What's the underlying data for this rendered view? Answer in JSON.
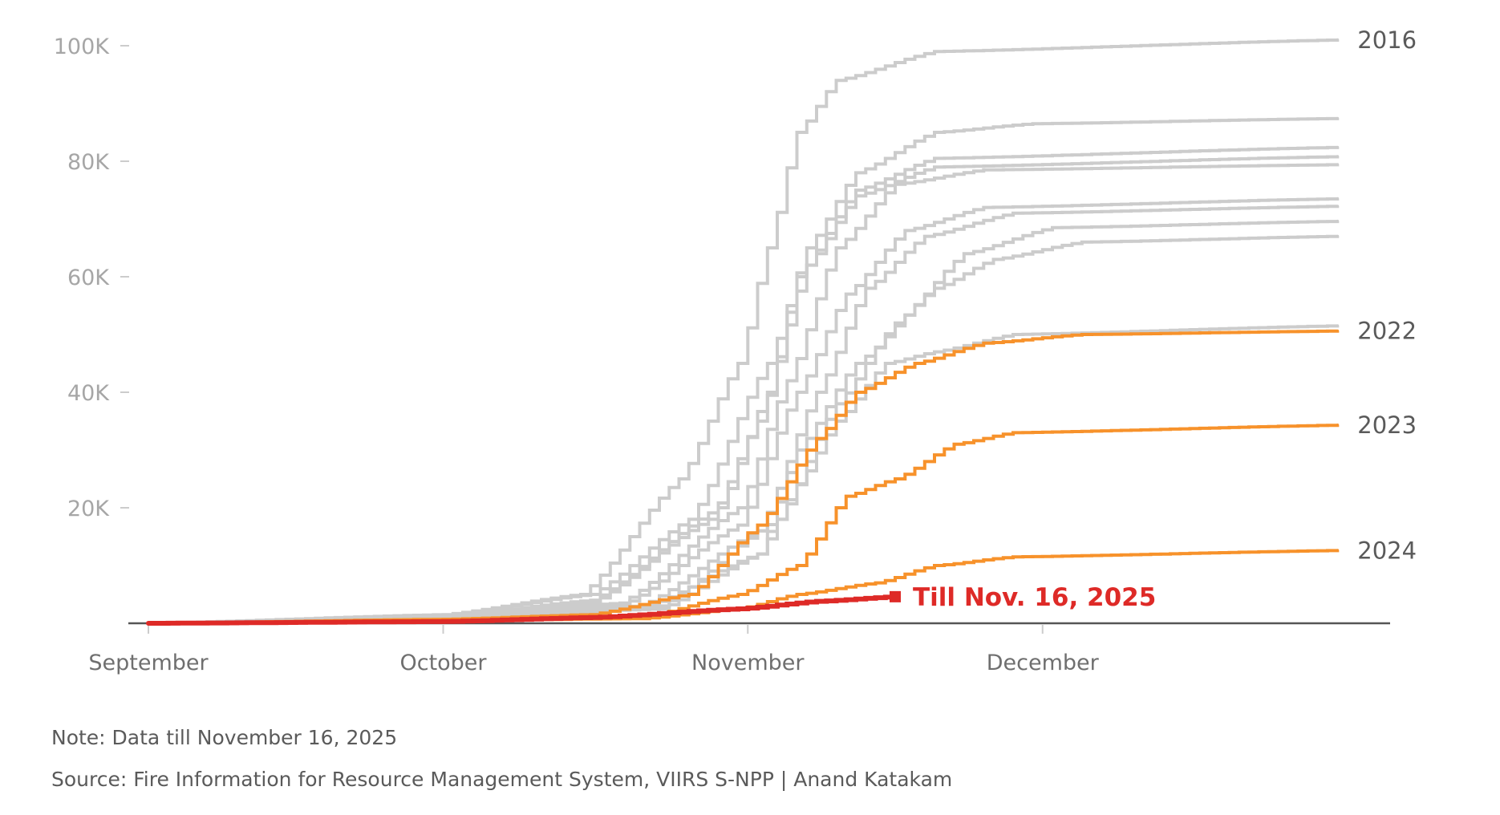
{
  "chart_data": {
    "type": "line",
    "subtype": "step-cumulative",
    "title": "",
    "xlabel": "",
    "ylabel": "",
    "x_unit": "days since September 1",
    "x_range": [
      0,
      121
    ],
    "ylim": [
      0,
      100
    ],
    "y_unit": "thousands of fire counts (cumulative)",
    "y_ticks": [
      {
        "value": 20,
        "label": "20K"
      },
      {
        "value": 40,
        "label": "40K"
      },
      {
        "value": 60,
        "label": "60K"
      },
      {
        "value": 80,
        "label": "80K"
      },
      {
        "value": 100,
        "label": "100K"
      }
    ],
    "x_ticks": [
      {
        "value": 0,
        "label": "September"
      },
      {
        "value": 30,
        "label": "October"
      },
      {
        "value": 61,
        "label": "November"
      },
      {
        "value": 91,
        "label": "December"
      }
    ],
    "grid": false,
    "colors": {
      "past": "#cccccc",
      "recent": "#f7922b",
      "current": "#de2a27",
      "axis": "#555555",
      "tick": "#cccccc"
    },
    "series": [
      {
        "name": "2016",
        "label": "2016",
        "group": "past",
        "points": [
          [
            0,
            0
          ],
          [
            30,
            1.5
          ],
          [
            44,
            5
          ],
          [
            54,
            25
          ],
          [
            60,
            45
          ],
          [
            63,
            65
          ],
          [
            66,
            85
          ],
          [
            70,
            94
          ],
          [
            80,
            99
          ],
          [
            121,
            101
          ]
        ]
      },
      {
        "name": "past-a",
        "label": "",
        "group": "past",
        "points": [
          [
            0,
            0
          ],
          [
            30,
            1.3
          ],
          [
            45,
            5
          ],
          [
            55,
            18
          ],
          [
            63,
            45
          ],
          [
            67,
            65
          ],
          [
            72,
            78
          ],
          [
            80,
            85
          ],
          [
            90,
            86.5
          ],
          [
            121,
            87.4
          ]
        ]
      },
      {
        "name": "past-b",
        "label": "",
        "group": "past",
        "points": [
          [
            0,
            0
          ],
          [
            30,
            1.2
          ],
          [
            45,
            4
          ],
          [
            58,
            20
          ],
          [
            63,
            40
          ],
          [
            66,
            60
          ],
          [
            72,
            75
          ],
          [
            80,
            80.5
          ],
          [
            121,
            82.4
          ]
        ]
      },
      {
        "name": "past-c",
        "label": "",
        "group": "past",
        "points": [
          [
            0,
            0
          ],
          [
            30,
            1.1
          ],
          [
            45,
            3.5
          ],
          [
            57,
            18
          ],
          [
            62,
            35
          ],
          [
            67,
            62
          ],
          [
            72,
            74
          ],
          [
            80,
            79
          ],
          [
            121,
            80.8
          ]
        ]
      },
      {
        "name": "past-d",
        "label": "",
        "group": "past",
        "points": [
          [
            0,
            0
          ],
          [
            30,
            1
          ],
          [
            48,
            3.5
          ],
          [
            60,
            20
          ],
          [
            65,
            42
          ],
          [
            70,
            65
          ],
          [
            76,
            76
          ],
          [
            85,
            78.5
          ],
          [
            121,
            79.4
          ]
        ]
      },
      {
        "name": "past-e",
        "label": "",
        "group": "past",
        "points": [
          [
            0,
            0
          ],
          [
            30,
            0.9
          ],
          [
            48,
            3
          ],
          [
            60,
            17
          ],
          [
            66,
            40
          ],
          [
            71,
            57
          ],
          [
            77,
            68
          ],
          [
            85,
            72
          ],
          [
            121,
            73.5
          ]
        ]
      },
      {
        "name": "past-f",
        "label": "",
        "group": "past",
        "points": [
          [
            0,
            0
          ],
          [
            30,
            0.9
          ],
          [
            50,
            3
          ],
          [
            62,
            16
          ],
          [
            68,
            40
          ],
          [
            73,
            58
          ],
          [
            79,
            67
          ],
          [
            88,
            71
          ],
          [
            121,
            72.2
          ]
        ]
      },
      {
        "name": "past-g",
        "label": "",
        "group": "past",
        "points": [
          [
            0,
            0
          ],
          [
            30,
            0.8
          ],
          [
            52,
            3
          ],
          [
            64,
            18
          ],
          [
            70,
            38
          ],
          [
            76,
            52
          ],
          [
            83,
            64
          ],
          [
            92,
            68.5
          ],
          [
            121,
            69.6
          ]
        ]
      },
      {
        "name": "past-h",
        "label": "",
        "group": "past",
        "points": [
          [
            0,
            0
          ],
          [
            30,
            0.8
          ],
          [
            52,
            2.5
          ],
          [
            62,
            12
          ],
          [
            66,
            30
          ],
          [
            72,
            45
          ],
          [
            80,
            58
          ],
          [
            86,
            63
          ],
          [
            95,
            66
          ],
          [
            121,
            67
          ]
        ]
      },
      {
        "name": "past-i",
        "label": "",
        "group": "past",
        "points": [
          [
            0,
            0
          ],
          [
            30,
            0.8
          ],
          [
            50,
            2.5
          ],
          [
            62,
            12
          ],
          [
            66,
            24
          ],
          [
            70,
            35
          ],
          [
            75,
            45
          ],
          [
            80,
            47
          ],
          [
            88,
            50
          ],
          [
            121,
            51.5
          ]
        ]
      },
      {
        "name": "2022",
        "label": "2022",
        "group": "recent",
        "points": [
          [
            0,
            0
          ],
          [
            30,
            0.7
          ],
          [
            45,
            1.5
          ],
          [
            55,
            5
          ],
          [
            62,
            17
          ],
          [
            68,
            32
          ],
          [
            72,
            40
          ],
          [
            78,
            45
          ],
          [
            85,
            48.5
          ],
          [
            95,
            50
          ],
          [
            121,
            50.6
          ]
        ]
      },
      {
        "name": "2023",
        "label": "2023",
        "group": "recent",
        "points": [
          [
            0,
            0
          ],
          [
            30,
            0.6
          ],
          [
            50,
            1
          ],
          [
            60,
            5
          ],
          [
            66,
            10
          ],
          [
            71,
            22
          ],
          [
            76,
            25
          ],
          [
            82,
            31
          ],
          [
            88,
            33
          ],
          [
            121,
            34.3
          ]
        ]
      },
      {
        "name": "2024",
        "label": "2024",
        "group": "recent",
        "points": [
          [
            0,
            0
          ],
          [
            30,
            0.5
          ],
          [
            50,
            0.8
          ],
          [
            60,
            2.5
          ],
          [
            66,
            5
          ],
          [
            74,
            7
          ],
          [
            80,
            10
          ],
          [
            88,
            11.5
          ],
          [
            121,
            12.6
          ]
        ]
      },
      {
        "name": "2025",
        "label": "Till Nov. 16, 2025",
        "group": "current",
        "points": [
          [
            0,
            0
          ],
          [
            30,
            0.3
          ],
          [
            45,
            1
          ],
          [
            60,
            2.5
          ],
          [
            68,
            3.8
          ],
          [
            76,
            4.6
          ]
        ]
      }
    ]
  },
  "footer": {
    "note": "Note: Data till November 16, 2025",
    "source": "Source: Fire Information for Resource Management System, VIIRS S-NPP | Anand Katakam"
  }
}
